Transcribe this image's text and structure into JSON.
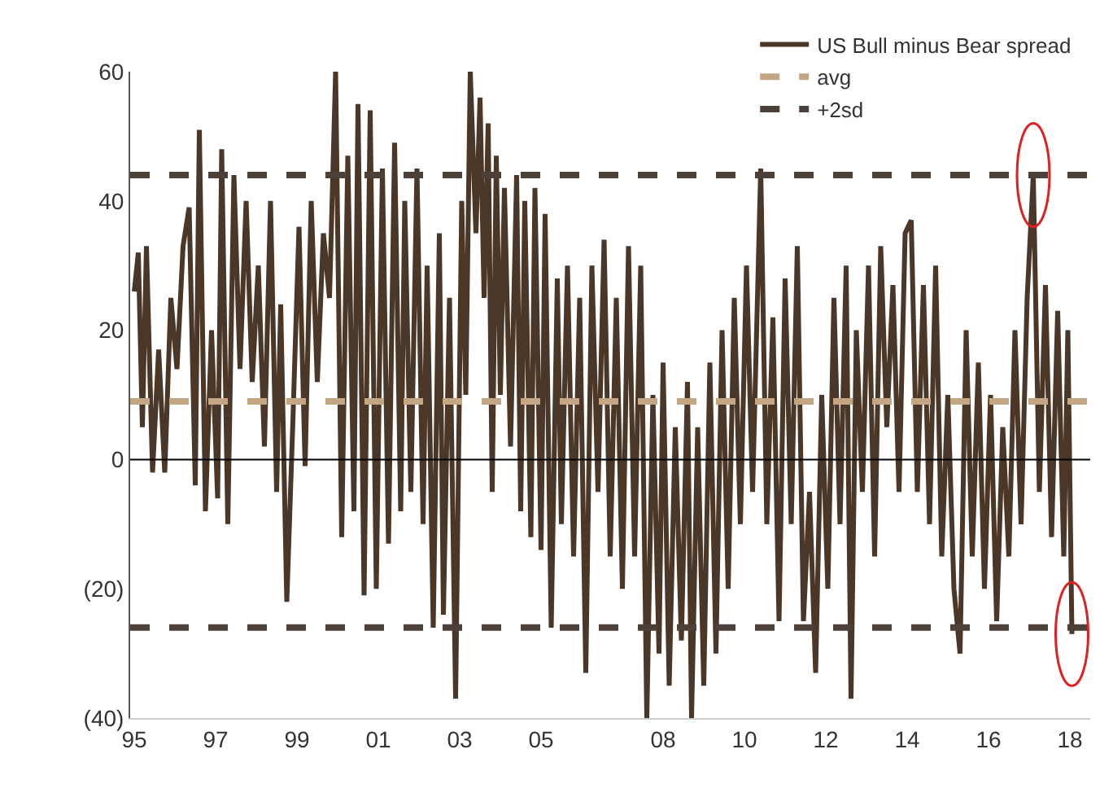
{
  "chart_data": {
    "type": "line",
    "legend": "top right",
    "grid": false,
    "marker": "none",
    "line_style": "solid",
    "xlim": [
      1994.9,
      2018.5
    ],
    "xticks": [
      {
        "value": 1995,
        "label": "95"
      },
      {
        "value": 1997,
        "label": "97"
      },
      {
        "value": 1999,
        "label": "99"
      },
      {
        "value": 2001,
        "label": "01"
      },
      {
        "value": 2003,
        "label": "03"
      },
      {
        "value": 2005,
        "label": "05"
      },
      {
        "value": 2008,
        "label": "08"
      },
      {
        "value": 2010,
        "label": "10"
      },
      {
        "value": 2012,
        "label": "12"
      },
      {
        "value": 2014,
        "label": "14"
      },
      {
        "value": 2016,
        "label": "16"
      },
      {
        "value": 2018,
        "label": "18"
      }
    ],
    "ylim": [
      -40,
      60
    ],
    "yticks": [
      {
        "value": -40,
        "label": "(40)"
      },
      {
        "value": -20,
        "label": "(20)"
      },
      0,
      20,
      40,
      60
    ],
    "x": [
      1995.0,
      1995.1,
      1995.2,
      1995.3,
      1995.45,
      1995.6,
      1995.75,
      1995.9,
      1996.05,
      1996.2,
      1996.35,
      1996.5,
      1996.6,
      1996.75,
      1996.9,
      1997.05,
      1997.15,
      1997.3,
      1997.45,
      1997.6,
      1997.75,
      1997.9,
      1998.05,
      1998.2,
      1998.35,
      1998.5,
      1998.6,
      1998.75,
      1998.9,
      1999.05,
      1999.2,
      1999.35,
      1999.5,
      1999.65,
      1999.8,
      1999.95,
      2000.1,
      2000.25,
      2000.4,
      2000.5,
      2000.65,
      2000.8,
      2000.95,
      2001.1,
      2001.25,
      2001.4,
      2001.55,
      2001.65,
      2001.8,
      2001.95,
      2002.1,
      2002.2,
      2002.35,
      2002.5,
      2002.6,
      2002.75,
      2002.9,
      2003.05,
      2003.15,
      2003.26,
      2003.4,
      2003.5,
      2003.6,
      2003.7,
      2003.8,
      2003.9,
      2004.0,
      2004.1,
      2004.25,
      2004.4,
      2004.5,
      2004.6,
      2004.75,
      2004.85,
      2005.0,
      2005.1,
      2005.25,
      2005.4,
      2005.5,
      2005.65,
      2005.8,
      2005.95,
      2006.1,
      2006.25,
      2006.4,
      2006.55,
      2006.7,
      2006.85,
      2007.0,
      2007.15,
      2007.3,
      2007.45,
      2007.6,
      2007.75,
      2007.9,
      2008.0,
      2008.15,
      2008.3,
      2008.45,
      2008.6,
      2008.7,
      2008.85,
      2009.0,
      2009.15,
      2009.3,
      2009.45,
      2009.6,
      2009.75,
      2009.9,
      2010.05,
      2010.2,
      2010.4,
      2010.55,
      2010.7,
      2010.85,
      2011.0,
      2011.15,
      2011.3,
      2011.45,
      2011.6,
      2011.75,
      2011.9,
      2012.05,
      2012.2,
      2012.35,
      2012.5,
      2012.62,
      2012.75,
      2012.9,
      2013.05,
      2013.2,
      2013.35,
      2013.5,
      2013.65,
      2013.8,
      2013.95,
      2014.1,
      2014.25,
      2014.4,
      2014.55,
      2014.7,
      2014.85,
      2015.0,
      2015.15,
      2015.3,
      2015.45,
      2015.6,
      2015.75,
      2015.9,
      2016.05,
      2016.2,
      2016.35,
      2016.5,
      2016.65,
      2016.8,
      2016.95,
      2017.1,
      2017.25,
      2017.4,
      2017.55,
      2017.7,
      2017.85,
      2017.95,
      2018.05
    ],
    "series": [
      {
        "name": "US Bull minus Bear spread",
        "color": "#4a3728",
        "values": [
          26,
          32,
          5,
          33,
          -2,
          17,
          -2,
          25,
          14,
          33,
          39,
          -4,
          51,
          -8,
          20,
          -6,
          48,
          -10,
          44,
          14,
          40,
          12,
          30,
          2,
          40,
          -5,
          24,
          -22,
          6,
          36,
          -1,
          40,
          12,
          35,
          25,
          60,
          -12,
          47,
          -8,
          55,
          -21,
          54,
          -20,
          45,
          -13,
          49,
          -8,
          40,
          -5,
          45,
          -10,
          30,
          -26,
          35,
          -24,
          25,
          -37,
          40,
          10,
          60,
          35,
          56,
          25,
          52,
          -5,
          47,
          10,
          42,
          2,
          44,
          -8,
          40,
          -12,
          42,
          -14,
          38,
          -26,
          28,
          -10,
          30,
          -15,
          25,
          -33,
          30,
          -5,
          34,
          -15,
          25,
          -20,
          33,
          -15,
          30,
          -40,
          10,
          -30,
          15,
          -35,
          5,
          -28,
          12,
          -40,
          5,
          -35,
          15,
          -30,
          20,
          -20,
          25,
          -10,
          30,
          -5,
          45,
          -10,
          22,
          -25,
          28,
          -10,
          33,
          -25,
          -5,
          -33,
          10,
          -20,
          25,
          -10,
          30,
          -37,
          20,
          -5,
          30,
          -15,
          33,
          5,
          27,
          -5,
          35,
          37,
          -5,
          27,
          -10,
          30,
          -15,
          10,
          -20,
          -30,
          20,
          -15,
          15,
          -20,
          10,
          -25,
          5,
          -15,
          20,
          -10,
          25,
          44,
          -5,
          27,
          -12,
          23,
          -15,
          20,
          -27
        ]
      }
    ],
    "ref_lines": [
      {
        "axis": "y",
        "value": 0,
        "label": null,
        "color": "#000000",
        "line_style": "solid"
      },
      {
        "axis": "y",
        "value": 9,
        "label": "avg",
        "color": "#c4a584",
        "line_style": "dashed"
      },
      {
        "axis": "y",
        "value": 44,
        "label": "+2sd",
        "color": "#4d4038",
        "line_style": "dashed"
      },
      {
        "axis": "y",
        "value": -26,
        "label": null,
        "color": "#4d4038",
        "line_style": "dashed"
      }
    ]
  }
}
